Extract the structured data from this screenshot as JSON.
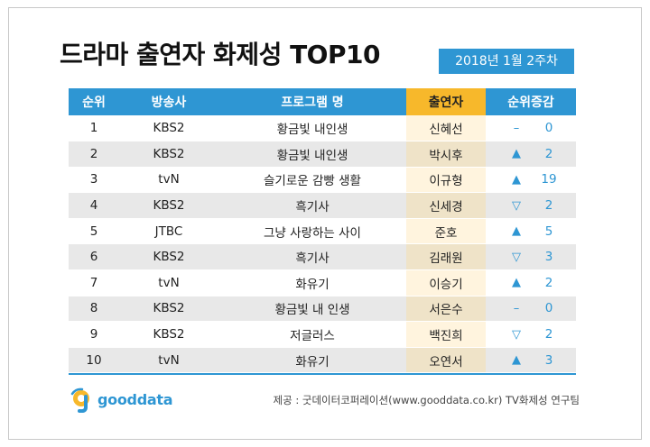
{
  "title": "드라마 출연자 화제성 TOP10",
  "date": "2018년 1월 2주차",
  "headers": {
    "rank": "순위",
    "channel": "방송사",
    "program": "프로그램 명",
    "performer": "출연자",
    "change": "순위증감"
  },
  "rows": [
    {
      "rank": "1",
      "channel": "KBS2",
      "program": "황금빛 내인생",
      "performer": "신혜선",
      "trend": "same",
      "symbol": "–",
      "change": "0"
    },
    {
      "rank": "2",
      "channel": "KBS2",
      "program": "황금빛 내인생",
      "performer": "박시후",
      "trend": "up",
      "symbol": "▲",
      "change": "2"
    },
    {
      "rank": "3",
      "channel": "tvN",
      "program": "슬기로운 감빵 생활",
      "performer": "이규형",
      "trend": "up",
      "symbol": "▲",
      "change": "19"
    },
    {
      "rank": "4",
      "channel": "KBS2",
      "program": "흑기사",
      "performer": "신세경",
      "trend": "down",
      "symbol": "▽",
      "change": "2"
    },
    {
      "rank": "5",
      "channel": "JTBC",
      "program": "그냥 사랑하는 사이",
      "performer": "준호",
      "trend": "up",
      "symbol": "▲",
      "change": "5"
    },
    {
      "rank": "6",
      "channel": "KBS2",
      "program": "흑기사",
      "performer": "김래원",
      "trend": "down",
      "symbol": "▽",
      "change": "3"
    },
    {
      "rank": "7",
      "channel": "tvN",
      "program": "화유기",
      "performer": "이승기",
      "trend": "up",
      "symbol": "▲",
      "change": "2"
    },
    {
      "rank": "8",
      "channel": "KBS2",
      "program": "황금빛 내 인생",
      "performer": "서은수",
      "trend": "same",
      "symbol": "–",
      "change": "0"
    },
    {
      "rank": "9",
      "channel": "KBS2",
      "program": "저글러스",
      "performer": "백진희",
      "trend": "down",
      "symbol": "▽",
      "change": "2"
    },
    {
      "rank": "10",
      "channel": "tvN",
      "program": "화유기",
      "performer": "오연서",
      "trend": "up",
      "symbol": "▲",
      "change": "3"
    }
  ],
  "logo_text": "gooddata",
  "source": "제공 : 굿데이터코퍼레이션(www.gooddata.co.kr) TV화제성 연구팀",
  "colors": {
    "header_blue": "#2e96d3",
    "header_highlight": "#f7b82b",
    "row_alt": "#e8e8e8"
  }
}
